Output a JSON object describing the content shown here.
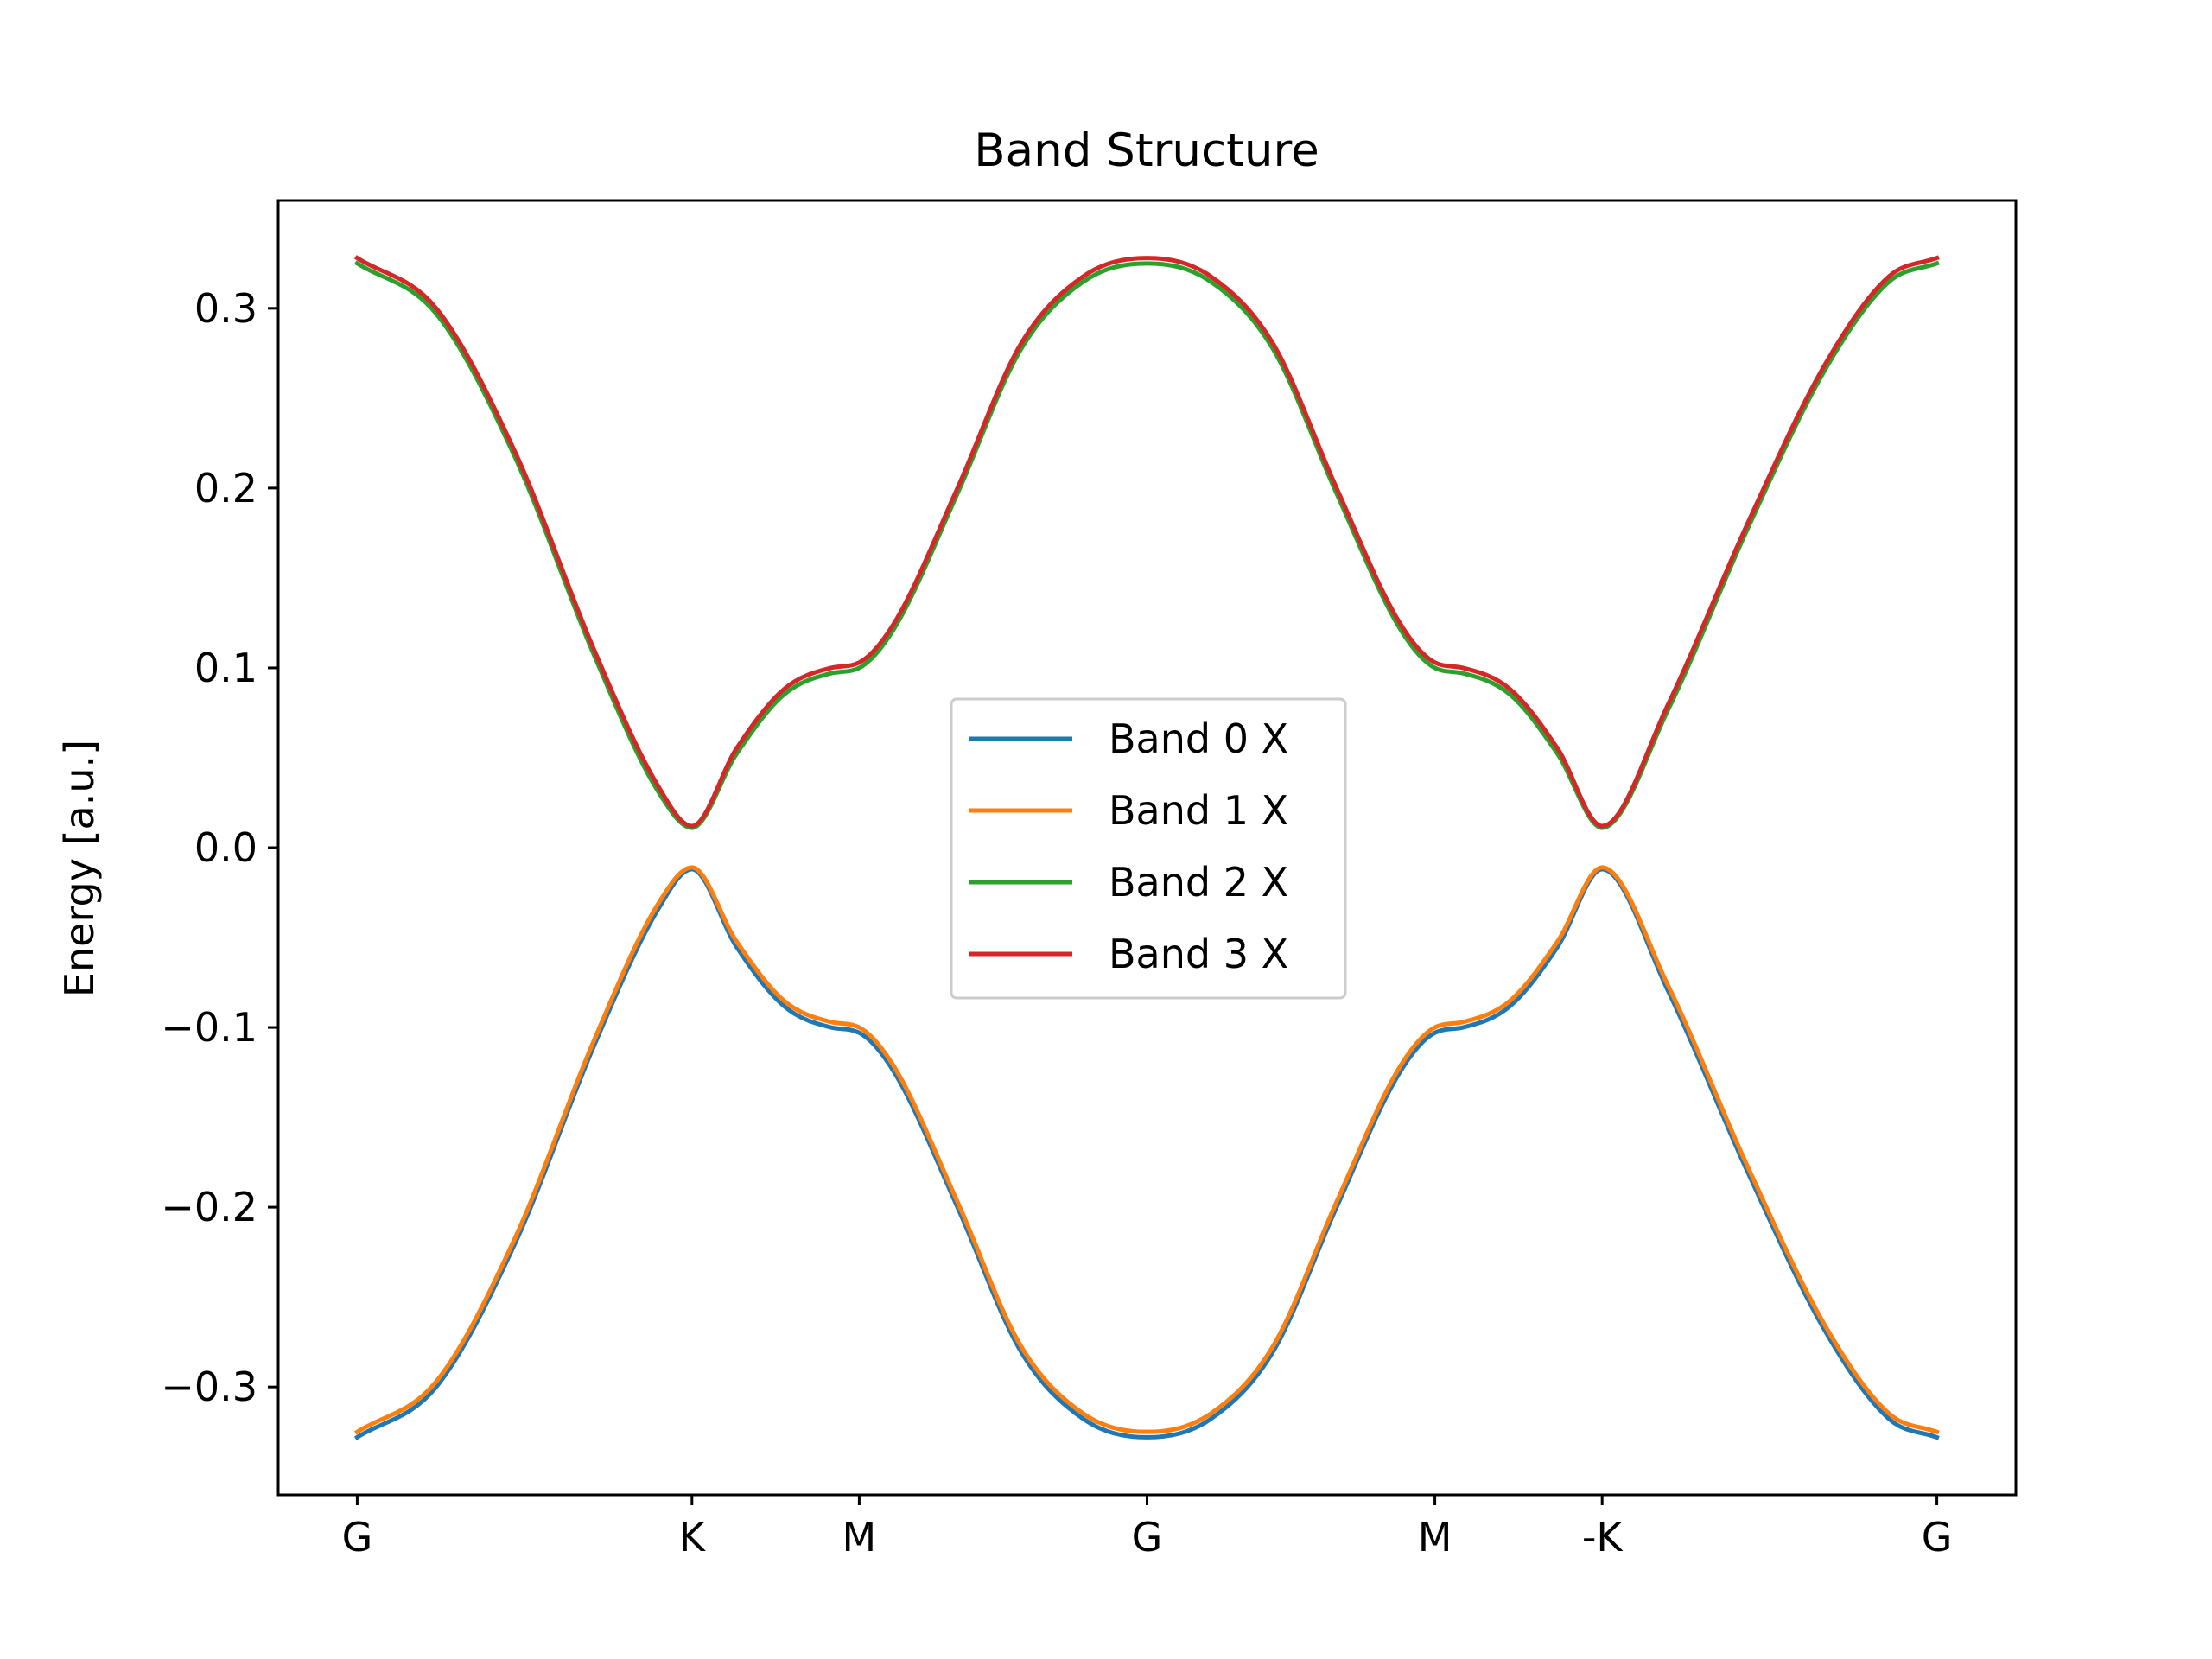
{
  "chart_data": {
    "type": "line",
    "title": "Band Structure",
    "xlabel": "",
    "ylabel": "Energy [a.u.]",
    "ylim": [
      -0.36,
      0.36
    ],
    "yticks": [
      -0.3,
      -0.2,
      -0.1,
      0.0,
      0.1,
      0.2,
      0.3
    ],
    "ytick_labels": [
      "−0.3",
      "−0.2",
      "−0.1",
      "0.0",
      "0.1",
      "0.2",
      "0.3"
    ],
    "xlim": [
      -0.05,
      1.05
    ],
    "xticks": [
      0.0,
      0.2119,
      0.3178,
      0.5,
      0.6822,
      0.7881,
      1.0
    ],
    "xtick_labels": [
      "G",
      "K",
      "M",
      "G",
      "M",
      "-K",
      "G"
    ],
    "grid": false,
    "legend_position": "center",
    "x": [
      0.0,
      0.05,
      0.1,
      0.15,
      0.19,
      0.2119,
      0.24,
      0.27,
      0.3,
      0.3178,
      0.34,
      0.38,
      0.42,
      0.46,
      0.5,
      0.54,
      0.58,
      0.62,
      0.66,
      0.6822,
      0.7,
      0.73,
      0.76,
      0.7881,
      0.83,
      0.88,
      0.93,
      0.97,
      1.0
    ],
    "series": [
      {
        "name": "Band 0 X",
        "color": "#1f77b4",
        "values": [
          -0.328,
          -0.3,
          -0.22,
          -0.11,
          -0.035,
          -0.012,
          -0.055,
          -0.088,
          -0.1,
          -0.103,
          -0.125,
          -0.2,
          -0.28,
          -0.318,
          -0.328,
          -0.318,
          -0.28,
          -0.2,
          -0.125,
          -0.103,
          -0.1,
          -0.088,
          -0.055,
          -0.012,
          -0.08,
          -0.18,
          -0.27,
          -0.318,
          -0.328
        ]
      },
      {
        "name": "Band 1 X",
        "color": "#ff7f0e",
        "values": [
          -0.325,
          -0.297,
          -0.217,
          -0.107,
          -0.032,
          -0.011,
          -0.052,
          -0.085,
          -0.097,
          -0.1,
          -0.122,
          -0.197,
          -0.277,
          -0.315,
          -0.325,
          -0.315,
          -0.277,
          -0.197,
          -0.122,
          -0.1,
          -0.097,
          -0.085,
          -0.052,
          -0.011,
          -0.077,
          -0.177,
          -0.267,
          -0.315,
          -0.325
        ]
      },
      {
        "name": "Band 2 X",
        "color": "#2ca02c",
        "values": [
          0.325,
          0.297,
          0.217,
          0.107,
          0.032,
          0.011,
          0.052,
          0.085,
          0.097,
          0.1,
          0.122,
          0.197,
          0.277,
          0.315,
          0.325,
          0.315,
          0.277,
          0.197,
          0.122,
          0.1,
          0.097,
          0.085,
          0.052,
          0.011,
          0.077,
          0.177,
          0.267,
          0.315,
          0.325
        ]
      },
      {
        "name": "Band 3 X",
        "color": "#d62728",
        "values": [
          0.328,
          0.3,
          0.22,
          0.11,
          0.035,
          0.012,
          0.055,
          0.088,
          0.1,
          0.103,
          0.125,
          0.2,
          0.28,
          0.318,
          0.328,
          0.318,
          0.28,
          0.2,
          0.125,
          0.103,
          0.1,
          0.088,
          0.055,
          0.012,
          0.08,
          0.18,
          0.27,
          0.318,
          0.328
        ]
      }
    ]
  }
}
